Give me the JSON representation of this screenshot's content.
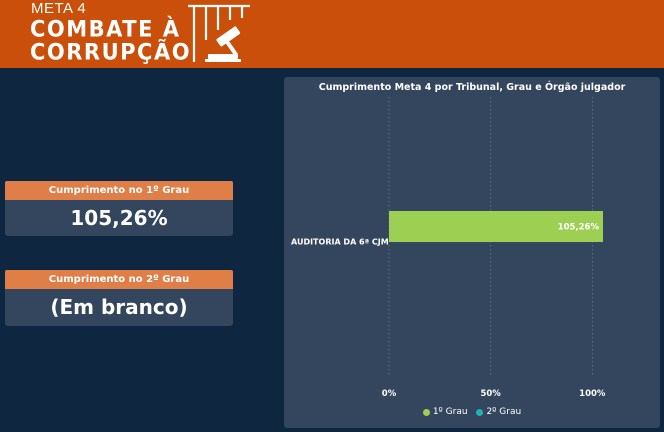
{
  "header": {
    "meta": "META 4",
    "title_line1": "COMBATE À",
    "title_line2": "CORRUPÇÃO",
    "logo_icon": "jail-bars-gavel-icon",
    "bg_color": "#c94f0a"
  },
  "cards": [
    {
      "title": "Cumprimento no 1º Grau",
      "value": "105,26%"
    },
    {
      "title": "Cumprimento no 2º Grau",
      "value": "(Em branco)"
    }
  ],
  "chart_data": {
    "type": "bar",
    "orientation": "horizontal",
    "title": "Cumprimento Meta 4 por Tribunal, Grau e Órgão julgador",
    "categories": [
      "AUDITORIA DA 6ª CJM"
    ],
    "series": [
      {
        "name": "1º Grau",
        "color": "#9ccf52",
        "values": [
          105.26
        ],
        "labels": [
          "105,26%"
        ]
      },
      {
        "name": "2º Grau",
        "color": "#1fb3b3",
        "values": [
          null
        ],
        "labels": [
          ""
        ]
      }
    ],
    "xlim": [
      0,
      105.26
    ],
    "x_ticks": [
      {
        "value": 0,
        "label": "0%"
      },
      {
        "value": 50,
        "label": "50%"
      },
      {
        "value": 100,
        "label": "100%"
      }
    ],
    "grid": "vertical-dotted",
    "legend_position": "bottom-center"
  }
}
